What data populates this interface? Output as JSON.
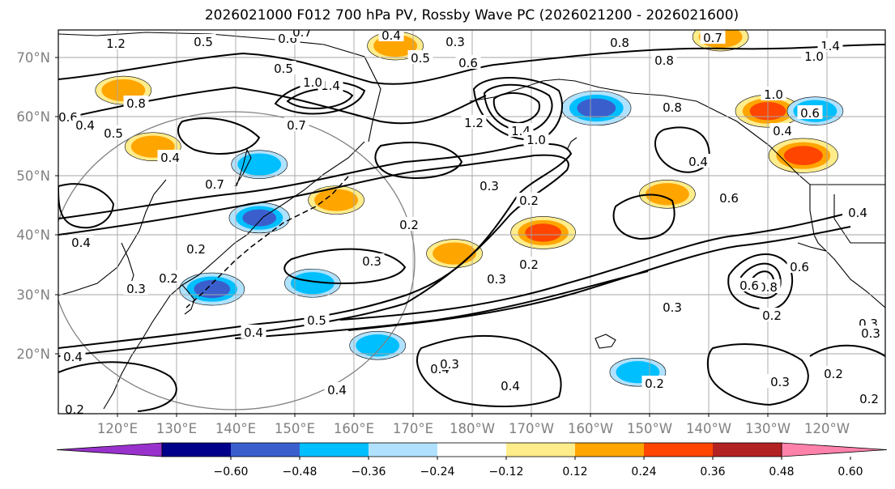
{
  "title": "2026021000 F012 700 hPa PV, Rossby Wave PC (2026021200 - 2026021600)",
  "lat_labels": [
    "70°N",
    "60°N",
    "50°N",
    "40°N",
    "30°N",
    "20°N"
  ],
  "lon_labels": [
    "120°E",
    "130°E",
    "140°E",
    "150°E",
    "160°E",
    "170°E",
    "180°W",
    "170°W",
    "160°W",
    "150°W",
    "140°W",
    "130°W",
    "120°W"
  ],
  "colorbar": {
    "colors": [
      "#9932cc",
      "#00008b",
      "#3a5fcd",
      "#00bfff",
      "#b0e2ff",
      "#ffffff",
      "#ffec8b",
      "#ffa500",
      "#ff4500",
      "#b22222",
      "#ff82ab"
    ],
    "tick_labels": [
      "−0.60",
      "−0.48",
      "−0.36",
      "−0.24",
      "−0.12",
      "0.12",
      "0.24",
      "0.36",
      "0.48",
      "0.60"
    ]
  },
  "contour_labels": [
    "1.2",
    "0.5",
    "0.6",
    "0.7",
    "0.4",
    "0.3",
    "0.5",
    "0.6",
    "0.8",
    "0.7",
    "1.4",
    "1.0",
    "0.5",
    "1.4",
    "1.0",
    "0.8",
    "0.6",
    "0.4",
    "0.5",
    "0.4",
    "0.7",
    "1.2",
    "1.4",
    "1.0",
    "0.8",
    "0.3",
    "0.4",
    "0.8",
    "1.0",
    "0.6",
    "0.6",
    "0.3",
    "0.4",
    "0.7",
    "0.2",
    "0.4",
    "0.6",
    "0.3",
    "0.2",
    "0.3",
    "0.3",
    "0.2",
    "0.4",
    "0.3",
    "0.5",
    "0.4",
    "0.3",
    "0.4",
    "0.8",
    "0.6",
    "0.2",
    "0.4",
    "0.3",
    "0.2",
    "0.4",
    "0.2",
    "0.2",
    "0.3",
    "0.2",
    "0.2",
    "0.2",
    "0.4"
  ],
  "anomalies": [
    {
      "lon": 202,
      "lat": 61.5,
      "value": -0.45
    },
    {
      "lon": 231,
      "lat": 61,
      "value": 0.4
    },
    {
      "lon": 223,
      "lat": 73.5,
      "value": 0.3
    },
    {
      "lon": 237,
      "lat": 53.5,
      "value": 0.45
    },
    {
      "lon": 239,
      "lat": 61,
      "value": -0.3
    },
    {
      "lon": 193,
      "lat": 40.5,
      "value": 0.4
    },
    {
      "lon": 214,
      "lat": 47,
      "value": 0.3
    },
    {
      "lon": 158,
      "lat": 46,
      "value": 0.3
    },
    {
      "lon": 145,
      "lat": 43,
      "value": -0.35
    },
    {
      "lon": 137,
      "lat": 31,
      "value": -0.4
    },
    {
      "lon": 154,
      "lat": 32,
      "value": -0.3
    },
    {
      "lon": 165,
      "lat": 21.5,
      "value": -0.3
    },
    {
      "lon": 168,
      "lat": 72,
      "value": 0.3
    },
    {
      "lon": 127,
      "lat": 55,
      "value": 0.3
    },
    {
      "lon": 122,
      "lat": 64.5,
      "value": 0.3
    },
    {
      "lon": 145,
      "lat": 52,
      "value": -0.3
    },
    {
      "lon": 209,
      "lat": 17,
      "value": -0.3
    },
    {
      "lon": 178,
      "lat": 37,
      "value": 0.3
    }
  ]
}
